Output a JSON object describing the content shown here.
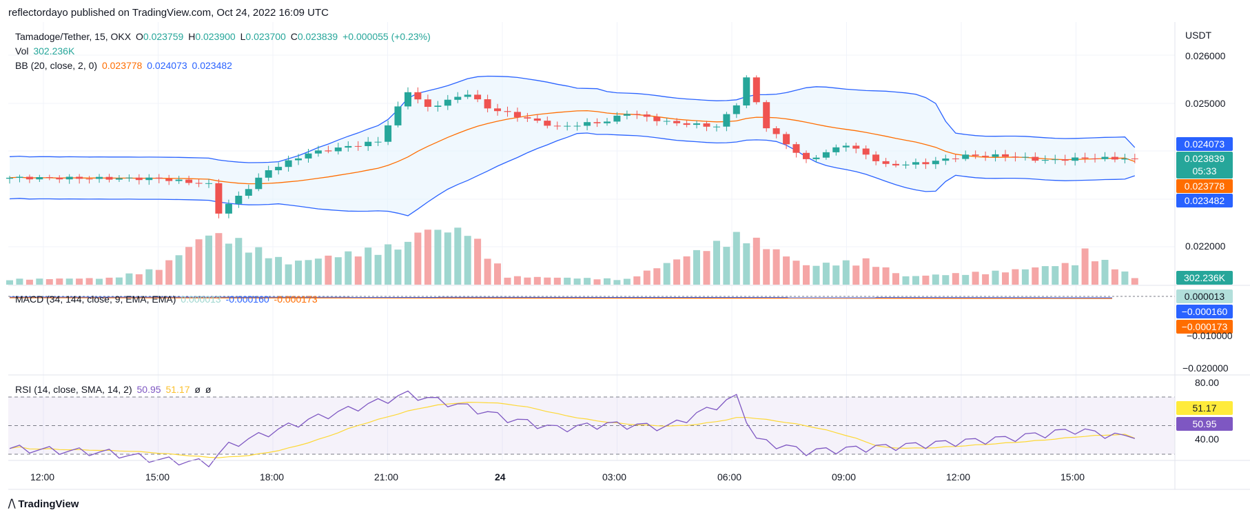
{
  "header": {
    "publisher_line": "reflectordayo published on TradingView.com, Oct 24, 2022 16:09 UTC"
  },
  "footer": {
    "brand": "TradingView"
  },
  "legend": {
    "symbol": "Tamadoge/Tether, 15, OKX",
    "o_key": "O",
    "o_val": "0.023759",
    "h_key": "H",
    "h_val": "0.023900",
    "l_key": "L",
    "l_val": "0.023700",
    "c_key": "C",
    "c_val": "0.023839",
    "change": "+0.000055 (+0.23%)",
    "vol_label": "Vol",
    "vol_val": "302.236K",
    "bb_label": "BB (20, close, 2, 0)",
    "bb_basis": "0.023778",
    "bb_upper": "0.024073",
    "bb_lower": "0.023482",
    "macd_label": "MACD (34, 144, close, 9, EMA, EMA)",
    "macd_hist": "0.000013",
    "macd_line": "-0.000160",
    "macd_signal": "-0.000173",
    "rsi_label": "RSI (14, close, SMA, 14, 2)",
    "rsi_val": "50.95",
    "rsi_ma": "51.17",
    "rsi_x1": "ø",
    "rsi_x2": "ø"
  },
  "price_axis": {
    "currency": "USDT",
    "ticks": [
      "0.026000",
      "0.025000",
      "0.022000"
    ],
    "badges": {
      "bb_upper": "0.024073",
      "close": "0.023839",
      "countdown": "05:33",
      "bb_basis": "0.023778",
      "bb_lower": "0.023482",
      "volume": "302.236K"
    }
  },
  "macd_axis": {
    "ticks": [
      "−0.010000",
      "−0.020000"
    ],
    "badges": {
      "hist": "0.000013",
      "macd": "−0.000160",
      "signal": "−0.000173"
    }
  },
  "rsi_axis": {
    "ticks": [
      "80.00",
      "40.00"
    ],
    "badges": {
      "ma": "51.17",
      "rsi": "50.95"
    }
  },
  "time_axis": {
    "labels": [
      "12:00",
      "15:00",
      "18:00",
      "21:00",
      "24",
      "03:00",
      "06:00",
      "09:00",
      "12:00",
      "15:00"
    ]
  },
  "colors": {
    "up": "#26a69a",
    "down": "#ef5350",
    "bb_upper": "#2962ff",
    "bb_basis": "#ff6d00",
    "bb_fill": "#e3f2fd",
    "vol_up": "#9ed6cf",
    "vol_down": "#f5a6a6",
    "rsi": "#7e57c2",
    "rsi_ma": "#fdd835"
  },
  "chart_data": {
    "type": "candlestick",
    "title": "Tamadoge/Tether, 15, OKX",
    "price_levels": {
      "last_close": 0.023839,
      "bb_upper": 0.024073,
      "bb_basis": 0.023778,
      "bb_lower": 0.023482
    },
    "price_range": [
      0.0216,
      0.0265
    ],
    "sampled_price_path": [
      [
        0,
        0.02344
      ],
      [
        15,
        0.02342
      ],
      [
        20,
        0.0233
      ],
      [
        21,
        0.02272
      ],
      [
        23,
        0.02305
      ],
      [
        26,
        0.0236
      ],
      [
        30,
        0.02395
      ],
      [
        37,
        0.0242
      ],
      [
        40,
        0.02525
      ],
      [
        42,
        0.0249
      ],
      [
        46,
        0.0252
      ],
      [
        48,
        0.0249
      ],
      [
        55,
        0.0245
      ],
      [
        60,
        0.02462
      ],
      [
        62,
        0.0248
      ],
      [
        66,
        0.0246
      ],
      [
        71,
        0.02451
      ],
      [
        73,
        0.02498
      ],
      [
        74,
        0.02552
      ],
      [
        76,
        0.0245
      ],
      [
        80,
        0.0238
      ],
      [
        84,
        0.02414
      ],
      [
        88,
        0.0237
      ],
      [
        92,
        0.02375
      ],
      [
        96,
        0.0239
      ],
      [
        100,
        0.0239
      ],
      [
        104,
        0.0238
      ],
      [
        108,
        0.02385
      ],
      [
        113,
        0.02384
      ]
    ],
    "volume_profile": [
      [
        0,
        0.1
      ],
      [
        10,
        0.12
      ],
      [
        15,
        0.3
      ],
      [
        20,
        0.95
      ],
      [
        23,
        0.8
      ],
      [
        28,
        0.4
      ],
      [
        40,
        0.75
      ],
      [
        41,
        1.0
      ],
      [
        46,
        1.0
      ],
      [
        50,
        0.15
      ],
      [
        62,
        0.1
      ],
      [
        73,
        0.9
      ],
      [
        74,
        0.9
      ],
      [
        80,
        0.35
      ],
      [
        86,
        0.45
      ],
      [
        90,
        0.15
      ],
      [
        100,
        0.25
      ],
      [
        107,
        0.4
      ],
      [
        108,
        0.62
      ],
      [
        113,
        0.13
      ]
    ],
    "rsi_levels": {
      "upper_band": 80,
      "lower_band": 40,
      "last_rsi": 50.95,
      "last_ma": 51.17
    },
    "rsi_samples": [
      [
        0,
        44
      ],
      [
        10,
        41
      ],
      [
        15,
        36
      ],
      [
        20,
        34
      ],
      [
        22,
        46
      ],
      [
        30,
        64
      ],
      [
        40,
        82
      ],
      [
        46,
        73
      ],
      [
        50,
        65
      ],
      [
        55,
        58
      ],
      [
        60,
        61
      ],
      [
        66,
        59
      ],
      [
        73,
        80
      ],
      [
        75,
        50
      ],
      [
        80,
        42
      ],
      [
        90,
        46
      ],
      [
        100,
        51
      ],
      [
        107,
        57
      ],
      [
        113,
        51
      ]
    ],
    "macd": {
      "histogram": 1.3e-05,
      "macd": -0.00016,
      "signal": -0.000173
    },
    "x_labels": [
      "12:00",
      "15:00",
      "18:00",
      "21:00",
      "24",
      "03:00",
      "06:00",
      "09:00",
      "12:00",
      "15:00"
    ]
  }
}
